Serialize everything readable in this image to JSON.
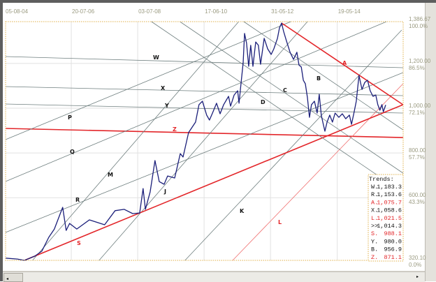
{
  "chart_data": {
    "type": "line",
    "title": "",
    "xlabel": "",
    "ylabel": "",
    "x_tick_labels": [
      "05-08-04",
      "20-07-06",
      "03-07-08",
      "17-06-10",
      "31-05-12",
      "19-05-14"
    ],
    "x_tick_dates": [
      "2004-08-05",
      "2006-07-20",
      "2008-07-03",
      "2010-06-17",
      "2012-05-31",
      "2014-05-19"
    ],
    "y_ticks": [
      {
        "value": 1386.67,
        "label": "1,386.67",
        "pct": "100.0%"
      },
      {
        "value": 1200,
        "label": "1,200.00",
        "pct": "86.5%"
      },
      {
        "value": 1000,
        "label": "1,000.00",
        "pct": "72.1%"
      },
      {
        "value": 800,
        "label": "800.00",
        "pct": "57.7%"
      },
      {
        "value": 600,
        "label": "600.00",
        "pct": "43.3%"
      },
      {
        "value": 320.1,
        "label": "320.10",
        "pct": "0.0%"
      }
    ],
    "ylim": [
      320.1,
      1386.67
    ],
    "grid": true,
    "colors": {
      "price": "#1b1f7a",
      "trend_gray": "#6f7f7f",
      "trend_red": "#e3262a",
      "trend_red_thin": "#f07070",
      "grid": "#e2e2e2",
      "plot_border": "#e0b04a"
    },
    "price": [
      [
        "2004-08-10",
        330
      ],
      [
        "2004-12-17",
        326
      ],
      [
        "2005-03-03",
        320
      ],
      [
        "2005-06-23",
        339
      ],
      [
        "2005-09-06",
        361
      ],
      [
        "2005-11-20",
        423
      ],
      [
        "2006-01-19",
        460
      ],
      [
        "2006-04-18",
        557
      ],
      [
        "2006-05-26",
        454
      ],
      [
        "2006-07-02",
        485
      ],
      [
        "2006-09-17",
        460
      ],
      [
        "2007-01-30",
        501
      ],
      [
        "2007-07-13",
        479
      ],
      [
        "2007-11-03",
        542
      ],
      [
        "2008-02-09",
        548
      ],
      [
        "2008-05-10",
        529
      ],
      [
        "2008-07-24",
        532
      ],
      [
        "2008-08-30",
        641
      ],
      [
        "2008-09-24",
        548
      ],
      [
        "2008-11-14",
        626
      ],
      [
        "2009-01-05",
        766
      ],
      [
        "2009-02-20",
        672
      ],
      [
        "2009-04-13",
        660
      ],
      [
        "2009-05-21",
        697
      ],
      [
        "2009-08-05",
        688
      ],
      [
        "2009-10-04",
        797
      ],
      [
        "2009-11-03",
        782
      ],
      [
        "2010-01-01",
        891
      ],
      [
        "2010-03-17",
        938
      ],
      [
        "2010-04-23",
        1016
      ],
      [
        "2010-05-30",
        1031
      ],
      [
        "2010-07-15",
        969
      ],
      [
        "2010-08-14",
        947
      ],
      [
        "2010-09-21",
        984
      ],
      [
        "2010-10-29",
        1022
      ],
      [
        "2010-12-06",
        975
      ],
      [
        "2011-01-13",
        1016
      ],
      [
        "2011-03-07",
        1053
      ],
      [
        "2011-03-29",
        1009
      ],
      [
        "2011-05-06",
        1059
      ],
      [
        "2011-06-13",
        1078
      ],
      [
        "2011-06-28",
        1022
      ],
      [
        "2011-07-20",
        1115
      ],
      [
        "2011-08-11",
        1203
      ],
      [
        "2011-08-26",
        1334
      ],
      [
        "2011-09-17",
        1290
      ],
      [
        "2011-10-09",
        1187
      ],
      [
        "2011-10-31",
        1281
      ],
      [
        "2011-11-24",
        1187
      ],
      [
        "2011-12-24",
        1296
      ],
      [
        "2012-01-22",
        1281
      ],
      [
        "2012-02-14",
        1196
      ],
      [
        "2012-03-24",
        1312
      ],
      [
        "2012-05-01",
        1265
      ],
      [
        "2012-06-07",
        1240
      ],
      [
        "2012-07-06",
        1265
      ],
      [
        "2012-08-14",
        1312
      ],
      [
        "2012-09-05",
        1359
      ],
      [
        "2012-09-27",
        1380
      ],
      [
        "2012-10-19",
        1343
      ],
      [
        "2012-11-17",
        1302
      ],
      [
        "2012-12-27",
        1250
      ],
      [
        "2013-02-03",
        1218
      ],
      [
        "2013-03-11",
        1250
      ],
      [
        "2013-04-02",
        1193
      ],
      [
        "2013-04-27",
        1184
      ],
      [
        "2013-05-19",
        1125
      ],
      [
        "2013-06-10",
        1109
      ],
      [
        "2013-07-02",
        1047
      ],
      [
        "2013-07-24",
        959
      ],
      [
        "2013-08-15",
        1016
      ],
      [
        "2013-09-15",
        1031
      ],
      [
        "2013-10-15",
        978
      ],
      [
        "2013-11-06",
        1062
      ],
      [
        "2013-11-28",
        969
      ],
      [
        "2013-12-20",
        928
      ],
      [
        "2014-01-06",
        897
      ],
      [
        "2014-01-29",
        938
      ],
      [
        "2014-02-27",
        969
      ],
      [
        "2014-03-28",
        938
      ],
      [
        "2014-04-26",
        978
      ],
      [
        "2014-06-05",
        959
      ],
      [
        "2014-07-12",
        975
      ],
      [
        "2014-08-18",
        953
      ],
      [
        "2014-09-27",
        969
      ],
      [
        "2014-10-19",
        928
      ],
      [
        "2014-11-17",
        984
      ],
      [
        "2014-12-09",
        1031
      ],
      [
        "2015-01-08",
        1146
      ],
      [
        "2015-02-09",
        1084
      ],
      [
        "2015-03-10",
        1115
      ],
      [
        "2015-04-09",
        1125
      ],
      [
        "2015-05-08",
        1078
      ],
      [
        "2015-06-07",
        1053
      ],
      [
        "2015-07-07",
        1059
      ],
      [
        "2015-07-29",
        1016
      ],
      [
        "2015-08-20",
        991
      ],
      [
        "2015-09-11",
        1016
      ],
      [
        "2015-09-26",
        984
      ],
      [
        "2015-10-22",
        1014.3
      ]
    ],
    "trendlines": [
      {
        "name": "W",
        "color": "gray",
        "from": [
          "2004-08-12",
          1230.7
        ],
        "to": [
          "2016-04-25",
          1180.8
        ]
      },
      {
        "name": "X",
        "color": "gray",
        "from": [
          "2004-08-12",
          1096.6
        ],
        "to": [
          "2016-04-25",
          1056.1
        ]
      },
      {
        "name": "Y",
        "color": "gray",
        "from": [
          "2004-08-12",
          1018.7
        ],
        "to": [
          "2016-04-25",
          978.1
        ]
      },
      {
        "name": "Z",
        "color": "red",
        "from": [
          "2004-08-12",
          909.5
        ],
        "to": [
          "2016-04-25",
          868.9
        ]
      },
      {
        "name": "P",
        "color": "gray",
        "from": [
          "2004-08-12",
          859.6
        ],
        "to": [
          "2013-01-04",
          1386.67
        ]
      },
      {
        "name": "Q",
        "color": "gray",
        "from": [
          "2004-08-12",
          672.5
        ],
        "to": [
          "2015-10-30",
          1386.67
        ]
      },
      {
        "name": "R",
        "color": "gray",
        "from": [
          "2004-08-12",
          444.8
        ],
        "to": [
          "2016-04-25",
          1159.0
        ]
      },
      {
        "name": "M",
        "color": "gray",
        "from": [
          "2005-05-29",
          320.1
        ],
        "to": [
          "2011-06-24",
          1386.67
        ]
      },
      {
        "name": "J",
        "color": "gray",
        "from": [
          "2007-05-15",
          320.1
        ],
        "to": [
          "2013-07-02",
          1386.67
        ]
      },
      {
        "name": "K",
        "color": "gray",
        "from": [
          "2009-11-24",
          320.1
        ],
        "to": [
          "2016-04-11",
          1349.2
        ]
      },
      {
        "name": "L",
        "color": "red-thin",
        "from": [
          "2011-04-20",
          320.1
        ],
        "to": [
          "2016-04-25",
          1109.1
        ]
      },
      {
        "name": "S",
        "color": "red",
        "from": [
          "2005-03-03",
          320.1
        ],
        "to": [
          "2016-04-25",
          1015.6
        ]
      },
      {
        "name": "A",
        "color": "red",
        "from": [
          "2012-09-27",
          1380.4
        ],
        "to": [
          "2016-04-25",
          1015.6
        ]
      },
      {
        "name": "B",
        "color": "gray",
        "from": [
          "2011-08-18",
          1386.67
        ],
        "to": [
          "2016-04-25",
          903.3
        ]
      },
      {
        "name": "C",
        "color": "gray",
        "from": [
          "2009-09-30",
          1386.67
        ],
        "to": [
          "2016-04-25",
          709.9
        ]
      },
      {
        "name": "D",
        "color": "gray",
        "from": [
          "2008-11-28",
          1386.67
        ],
        "to": [
          "2016-04-25",
          622.6
        ]
      }
    ],
    "legend": {
      "title": "Trends:",
      "placement": "bottom-right",
      "rows": [
        {
          "key": "W.",
          "value": "1,183.3",
          "red": false
        },
        {
          "key": "R.",
          "value": "1,153.6",
          "red": false
        },
        {
          "key": "A.",
          "value": "1,075.7",
          "red": true
        },
        {
          "key": "X.",
          "value": "1,058.6",
          "red": false
        },
        {
          "key": "L.",
          "value": "1,021.5",
          "red": true
        },
        {
          "key": ">>",
          "value": "1,014.3",
          "red": false
        },
        {
          "key": "S.",
          "value": "988.1",
          "red": true
        },
        {
          "key": "Y.",
          "value": "980.0",
          "red": false
        },
        {
          "key": "B.",
          "value": "956.9",
          "red": false
        },
        {
          "key": "Z.",
          "value": "871.1",
          "red": true
        }
      ]
    }
  },
  "scrollbar": {
    "left_arrow": "◂",
    "right_arrow": "▸"
  }
}
